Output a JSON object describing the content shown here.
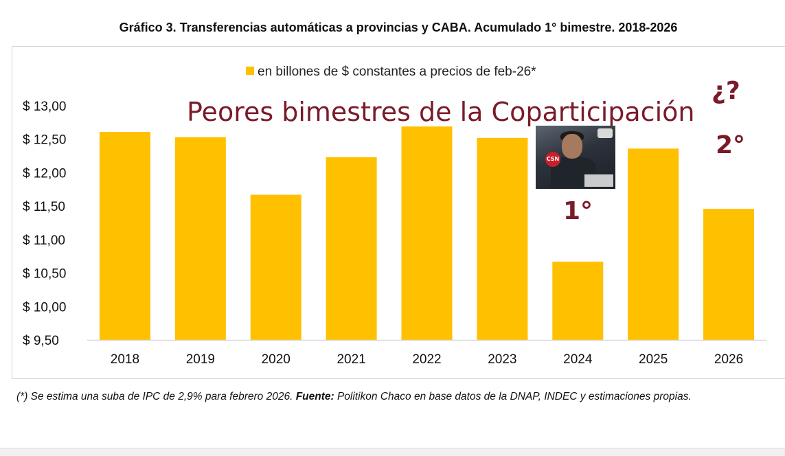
{
  "title": "Gráfico 3. Transferencias automáticas a provincias y CABA. Acumulado 1° bimestre. 2018-2026",
  "annotation_main": "Peores bimestres de la Coparticipación",
  "annotation_question": "¿?",
  "rank_first": "1°",
  "rank_second": "2°",
  "photo_icon_label": "CSN",
  "footnote": {
    "prefix": "(*) Se estima una suba de IPC de 2,9% para febrero 2026. ",
    "source_label": "Fuente:",
    "source_text": " Politikon Chaco en base datos de la DNAP, INDEC y estimaciones propias."
  },
  "colors": {
    "bar": "#FFC000",
    "accent": "#7A1B2A",
    "grid": "#d9d9d9"
  },
  "chart_data": {
    "type": "bar",
    "title": "Gráfico 3. Transferencias automáticas a provincias y CABA. Acumulado 1° bimestre. 2018-2026",
    "categories": [
      "2018",
      "2019",
      "2020",
      "2021",
      "2022",
      "2023",
      "2024",
      "2025",
      "2026"
    ],
    "series": [
      {
        "name": "en billones de $ constantes a precios de feb-26*",
        "values": [
          12.61,
          12.53,
          11.67,
          12.23,
          12.69,
          12.52,
          10.67,
          12.36,
          11.46
        ]
      }
    ],
    "y_ticks": [
      "$ 9,50",
      "$ 10,00",
      "$ 10,50",
      "$ 11,00",
      "$ 11,50",
      "$ 12,00",
      "$ 12,50",
      "$ 13,00"
    ],
    "ylim": [
      9.5,
      13.0
    ],
    "xlabel": "",
    "ylabel": "",
    "legend_position": "top-center",
    "grid": false
  }
}
